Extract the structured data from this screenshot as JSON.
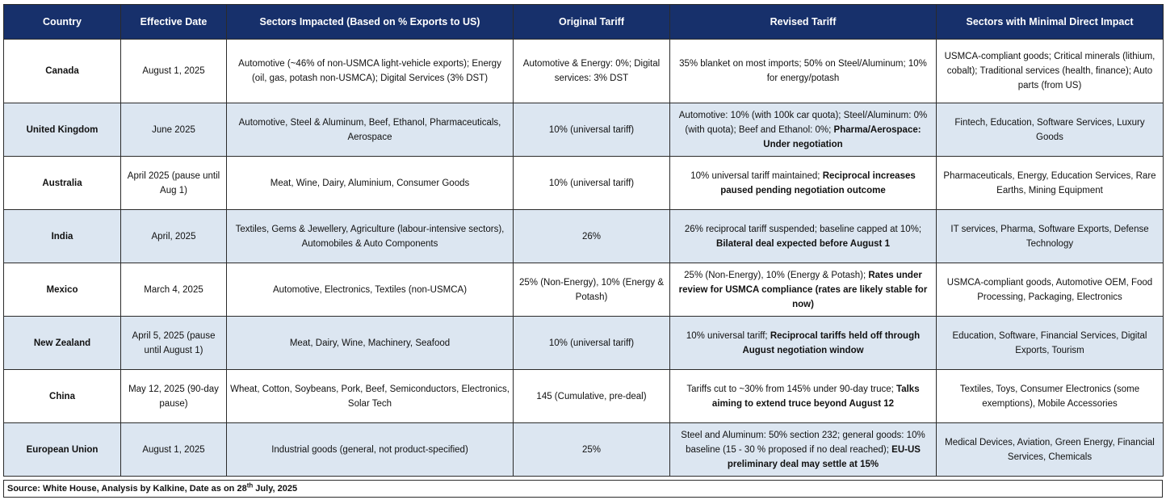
{
  "headers": [
    "Country",
    "Effective Date",
    "Sectors Impacted (Based on % Exports to US)",
    "Original Tariff",
    "Revised Tariff",
    "Sectors with Minimal Direct Impact"
  ],
  "rows": [
    {
      "country": "Canada",
      "date": "August 1, 2025",
      "sectors": "Automotive (~46% of non-USMCA light-vehicle exports); Energy (oil, gas, potash non-USMCA); Digital Services (3% DST)",
      "original": "Automotive & Energy: 0%; Digital services: 3% DST",
      "revised_plain": "35% blanket on most imports; 50% on Steel/Aluminum; 10% for energy/potash",
      "revised_bold": "",
      "minimal": "USMCA-compliant goods; Critical minerals (lithium, cobalt); Traditional services (health, finance); Auto parts (from US)"
    },
    {
      "country": "United Kingdom",
      "date": "June 2025",
      "sectors": "Automotive, Steel & Aluminum, Beef, Ethanol, Pharmaceuticals, Aerospace",
      "original": "10% (universal tariff)",
      "revised_plain": "Automotive: 10% (with 100k car quota); Steel/Aluminum: 0% (with quota); Beef and Ethanol: 0%;",
      "revised_bold": "Pharma/Aerospace: Under negotiation",
      "minimal": "Fintech, Education, Software Services, Luxury Goods"
    },
    {
      "country": "Australia",
      "date": "April 2025 (pause until Aug 1)",
      "sectors": "Meat, Wine, Dairy, Aluminium, Consumer Goods",
      "original": "10% (universal tariff)",
      "revised_plain": "10% universal tariff maintained;",
      "revised_bold": "Reciprocal increases paused pending negotiation outcome",
      "minimal": "Pharmaceuticals, Energy, Education Services, Rare Earths, Mining Equipment"
    },
    {
      "country": "India",
      "date": "April, 2025",
      "sectors": "Textiles, Gems & Jewellery, Agriculture (labour-intensive sectors), Automobiles & Auto Components",
      "original": "26%",
      "revised_plain": "26% reciprocal tariff suspended; baseline capped at 10%;",
      "revised_bold": "Bilateral deal expected before August 1",
      "minimal": "IT services, Pharma, Software Exports, Defense Technology"
    },
    {
      "country": "Mexico",
      "date": "March 4, 2025",
      "sectors": "Automotive, Electronics, Textiles (non-USMCA)",
      "original": "25% (Non-Energy), 10% (Energy & Potash)",
      "revised_plain": "25% (Non-Energy), 10% (Energy & Potash);",
      "revised_bold": "Rates under review for USMCA compliance (rates are likely stable for now)",
      "minimal": "USMCA-compliant goods, Automotive OEM, Food Processing, Packaging, Electronics"
    },
    {
      "country": "New Zealand",
      "date": "April 5, 2025 (pause until August 1)",
      "sectors": "Meat, Dairy, Wine, Machinery, Seafood",
      "original": "10% (universal tariff)",
      "revised_plain": "10% universal tariff;",
      "revised_bold": "Reciprocal tariffs held off through August negotiation window",
      "minimal": "Education, Software, Financial Services, Digital Exports, Tourism"
    },
    {
      "country": "China",
      "date": "May 12, 2025 (90-day pause)",
      "sectors": "Wheat, Cotton, Soybeans, Pork, Beef, Semiconductors, Electronics, Solar Tech",
      "original": "145 (Cumulative, pre-deal)",
      "revised_plain": "Tariffs cut to ~30% from 145% under 90-day truce;",
      "revised_bold": "Talks aiming to extend truce beyond August 12",
      "minimal": "Textiles, Toys, Consumer Electronics (some exemptions), Mobile Accessories"
    },
    {
      "country": "European Union",
      "date": "August 1, 2025",
      "sectors": "Industrial goods (general, not product-specified)",
      "original": "25%",
      "revised_plain": "Steel and Aluminum: 50% section 232; general goods: 10% baseline (15 - 30 % proposed if no deal reached);",
      "revised_bold": "EU-US preliminary deal may settle at 15%",
      "minimal": "Medical Devices, Aviation, Green Energy, Financial Services, Chemicals"
    }
  ],
  "source": {
    "prefix": "Source: White House, Analysis by Kalkine, Date as on 28",
    "sup": "th",
    "suffix": " July, 2025"
  },
  "colors": {
    "header_bg": "#17306b",
    "header_text": "#ffffff",
    "alt_row_bg": "#dce6f1",
    "border": "#2b2b2b"
  }
}
